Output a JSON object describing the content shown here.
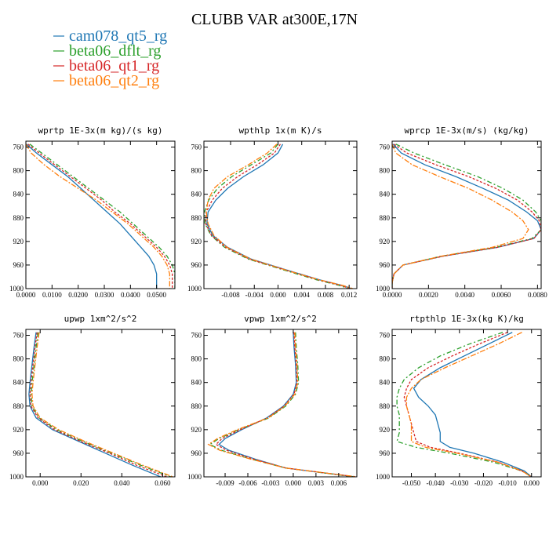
{
  "figure": {
    "title": "CLUBB VAR at300E,17N",
    "series": [
      {
        "name": "cam078_qt5_rg",
        "color": "#1f77b4",
        "dash": ""
      },
      {
        "name": "beta06_dflt_rg",
        "color": "#2ca02c",
        "dash": "6,3,2,3"
      },
      {
        "name": "beta06_qt1_rg",
        "color": "#d62728",
        "dash": "3,2"
      },
      {
        "name": "beta06_qt2_rg",
        "color": "#ff7f0e",
        "dash": "7,2,2,2"
      }
    ]
  },
  "chart_data": [
    {
      "type": "line",
      "title": "wprtp  1E-3x(m kg)/(s kg)",
      "xlim": [
        0,
        0.057
      ],
      "ylim": [
        1000,
        750
      ],
      "xticks": [
        "0.0000",
        "0.0100",
        "0.0200",
        "0.0300",
        "0.0400",
        "0.0500"
      ],
      "xtick_values": [
        0,
        0.01,
        0.02,
        0.03,
        0.04,
        0.05
      ],
      "yticks": [
        760,
        800,
        840,
        880,
        920,
        960,
        1000
      ],
      "p": [
        755,
        770,
        790,
        810,
        830,
        850,
        870,
        890,
        910,
        930,
        945,
        960,
        975,
        990,
        1000
      ],
      "series": [
        {
          "name": "cam078_qt5_rg",
          "values": [
            0.0002,
            0.004,
            0.01,
            0.016,
            0.021,
            0.026,
            0.031,
            0.036,
            0.04,
            0.044,
            0.047,
            0.049,
            0.05,
            0.05,
            0.05
          ]
        },
        {
          "name": "beta06_dflt_rg",
          "values": [
            0.0015,
            0.006,
            0.012,
            0.018,
            0.024,
            0.03,
            0.036,
            0.041,
            0.046,
            0.051,
            0.054,
            0.056,
            0.057,
            0.057,
            0.057
          ]
        },
        {
          "name": "beta06_qt1_rg",
          "values": [
            0.0008,
            0.005,
            0.011,
            0.017,
            0.023,
            0.029,
            0.034,
            0.04,
            0.045,
            0.05,
            0.053,
            0.055,
            0.056,
            0.056,
            0.056
          ]
        },
        {
          "name": "beta06_qt2_rg",
          "values": [
            0.0,
            0.002,
            0.007,
            0.013,
            0.02,
            0.027,
            0.033,
            0.039,
            0.044,
            0.049,
            0.052,
            0.054,
            0.055,
            0.055,
            0.055
          ]
        }
      ]
    },
    {
      "type": "line",
      "title": "wpthlp  1x(m K)/s",
      "xlim": [
        -0.0125,
        0.0133
      ],
      "ylim": [
        1000,
        750
      ],
      "xticks": [
        "-0.008",
        "-0.004",
        "0.000",
        "0.004",
        "0.008",
        "0.012"
      ],
      "xtick_values": [
        -0.008,
        -0.004,
        0.0,
        0.004,
        0.008,
        0.012
      ],
      "yticks": [
        760,
        800,
        840,
        880,
        920,
        960,
        1000
      ],
      "p": [
        755,
        770,
        790,
        810,
        830,
        850,
        870,
        890,
        910,
        930,
        950,
        970,
        985,
        995,
        1000
      ],
      "series": [
        {
          "name": "cam078_qt5_rg",
          "values": [
            0.0008,
            0.0,
            -0.0025,
            -0.0058,
            -0.0085,
            -0.0105,
            -0.0118,
            -0.012,
            -0.011,
            -0.0085,
            -0.0045,
            0.002,
            0.007,
            0.011,
            0.0123
          ]
        },
        {
          "name": "beta06_dflt_rg",
          "values": [
            0.0,
            -0.0012,
            -0.0045,
            -0.0078,
            -0.0102,
            -0.0117,
            -0.0124,
            -0.0123,
            -0.0113,
            -0.009,
            -0.005,
            0.0015,
            0.0065,
            0.0105,
            0.0118
          ]
        },
        {
          "name": "beta06_qt1_rg",
          "values": [
            0.0004,
            -0.0006,
            -0.0035,
            -0.0068,
            -0.0094,
            -0.0111,
            -0.0121,
            -0.0122,
            -0.0112,
            -0.0088,
            -0.0048,
            0.0018,
            0.0068,
            0.0108,
            0.012
          ]
        },
        {
          "name": "beta06_qt2_rg",
          "values": [
            -0.0002,
            -0.0018,
            -0.005,
            -0.0085,
            -0.0108,
            -0.0118,
            -0.0121,
            -0.0118,
            -0.0108,
            -0.0086,
            -0.0046,
            0.0018,
            0.0069,
            0.0111,
            0.0126
          ]
        }
      ]
    },
    {
      "type": "line",
      "title": "wprcp  1E-3x(m/s) (kg/kg)",
      "xlim": [
        0,
        0.0082
      ],
      "ylim": [
        1000,
        750
      ],
      "xticks": [
        "0.0000",
        "0.0020",
        "0.0040",
        "0.0060",
        "0.0080"
      ],
      "xtick_values": [
        0,
        0.002,
        0.004,
        0.006,
        0.008
      ],
      "yticks": [
        760,
        800,
        840,
        880,
        920,
        960,
        1000
      ],
      "p": [
        755,
        770,
        790,
        810,
        830,
        850,
        870,
        885,
        900,
        915,
        930,
        945,
        960,
        975,
        990,
        1000
      ],
      "series": [
        {
          "name": "cam078_qt5_rg",
          "values": [
            5e-05,
            0.0005,
            0.0018,
            0.0035,
            0.005,
            0.0064,
            0.0074,
            0.008,
            0.0082,
            0.0078,
            0.0058,
            0.0028,
            0.0006,
            0.0001,
            0.0,
            0.0
          ]
        },
        {
          "name": "beta06_dflt_rg",
          "values": [
            0.0002,
            0.0012,
            0.0029,
            0.0047,
            0.0061,
            0.0072,
            0.0079,
            0.0082,
            0.0082,
            0.0077,
            0.0057,
            0.0027,
            0.0006,
            0.0001,
            0.0,
            0.0
          ]
        },
        {
          "name": "beta06_qt1_rg",
          "values": [
            0.0001,
            0.0008,
            0.0024,
            0.0042,
            0.0057,
            0.0069,
            0.0077,
            0.0081,
            0.0082,
            0.0078,
            0.0058,
            0.0028,
            0.0006,
            0.0001,
            0.0,
            0.0
          ]
        },
        {
          "name": "beta06_qt2_rg",
          "values": [
            0.0,
            0.0002,
            0.0011,
            0.0026,
            0.0042,
            0.0055,
            0.0066,
            0.0072,
            0.0075,
            0.0072,
            0.0055,
            0.0027,
            0.0006,
            0.0001,
            0.0,
            0.0
          ]
        }
      ]
    },
    {
      "type": "line",
      "title": "upwp  1xm^2/s^2",
      "xlim": [
        -0.007,
        0.066
      ],
      "ylim": [
        1000,
        750
      ],
      "xticks": [
        "0.000",
        "0.020",
        "0.040",
        "0.060"
      ],
      "xtick_values": [
        0,
        0.02,
        0.04,
        0.06
      ],
      "yticks": [
        760,
        800,
        840,
        880,
        920,
        960,
        1000
      ],
      "p": [
        755,
        780,
        810,
        840,
        860,
        880,
        900,
        920,
        940,
        960,
        980,
        1000
      ],
      "series": [
        {
          "name": "cam078_qt5_rg",
          "values": [
            -0.002,
            -0.003,
            -0.004,
            -0.005,
            -0.0055,
            -0.005,
            -0.002,
            0.006,
            0.019,
            0.032,
            0.045,
            0.059
          ]
        },
        {
          "name": "beta06_dflt_rg",
          "values": [
            -0.001,
            -0.002,
            -0.003,
            -0.004,
            -0.0045,
            -0.004,
            -0.0005,
            0.008,
            0.021,
            0.035,
            0.049,
            0.064
          ]
        },
        {
          "name": "beta06_qt1_rg",
          "values": [
            -0.0015,
            -0.0025,
            -0.0035,
            -0.0045,
            -0.005,
            -0.0045,
            -0.001,
            0.007,
            0.02,
            0.034,
            0.047,
            0.062
          ]
        },
        {
          "name": "beta06_qt2_rg",
          "values": [
            -0.0005,
            -0.0015,
            -0.0025,
            -0.0035,
            -0.004,
            -0.0035,
            0.0,
            0.009,
            0.022,
            0.036,
            0.05,
            0.065
          ]
        }
      ]
    },
    {
      "type": "line",
      "title": "vpwp  1xm^2/s^2",
      "xlim": [
        -0.0118,
        0.0084
      ],
      "ylim": [
        1000,
        750
      ],
      "xticks": [
        "-0.009",
        "-0.006",
        "-0.003",
        "0.000",
        "0.003",
        "0.006"
      ],
      "xtick_values": [
        -0.009,
        -0.006,
        -0.003,
        0.0,
        0.003,
        0.006
      ],
      "yticks": [
        760,
        800,
        840,
        880,
        920,
        960,
        1000
      ],
      "p": [
        755,
        780,
        810,
        840,
        860,
        880,
        900,
        920,
        935,
        945,
        955,
        970,
        985,
        1000
      ],
      "series": [
        {
          "name": "cam078_qt5_rg",
          "values": [
            0.0,
            0.0001,
            0.0003,
            0.0004,
            0.0,
            -0.0013,
            -0.0035,
            -0.0068,
            -0.009,
            -0.0098,
            -0.0085,
            -0.005,
            -0.001,
            0.0082
          ]
        },
        {
          "name": "beta06_dflt_rg",
          "values": [
            0.0003,
            0.0004,
            0.0006,
            0.0007,
            0.0003,
            -0.001,
            -0.0032,
            -0.0072,
            -0.0098,
            -0.011,
            -0.0095,
            -0.0055,
            -0.001,
            0.008
          ]
        },
        {
          "name": "beta06_qt1_rg",
          "values": [
            0.0001,
            0.0002,
            0.0004,
            0.0005,
            0.0001,
            -0.0012,
            -0.0034,
            -0.007,
            -0.0094,
            -0.0102,
            -0.0088,
            -0.0052,
            -0.001,
            0.0083
          ]
        },
        {
          "name": "beta06_qt2_rg",
          "values": [
            0.0002,
            0.0003,
            0.0005,
            0.0006,
            0.0002,
            -0.0011,
            -0.0033,
            -0.0074,
            -0.01,
            -0.0112,
            -0.0097,
            -0.0056,
            -0.001,
            0.0084
          ]
        }
      ]
    },
    {
      "type": "line",
      "title": "rtpthlp  1E-3x(kg K)/kg",
      "xlim": [
        -0.058,
        0.004
      ],
      "ylim": [
        1000,
        750
      ],
      "xticks": [
        "-0.050",
        "-0.040",
        "-0.030",
        "-0.020",
        "-0.010",
        "0.000"
      ],
      "xtick_values": [
        -0.05,
        -0.04,
        -0.03,
        -0.02,
        -0.01,
        0.0
      ],
      "yticks": [
        760,
        800,
        840,
        880,
        920,
        960,
        1000
      ],
      "p": [
        755,
        775,
        795,
        815,
        835,
        850,
        865,
        880,
        895,
        910,
        925,
        940,
        950,
        960,
        975,
        990,
        1000
      ],
      "series": [
        {
          "name": "cam078_qt5_rg",
          "values": [
            -0.008,
            -0.018,
            -0.028,
            -0.038,
            -0.046,
            -0.049,
            -0.047,
            -0.043,
            -0.04,
            -0.039,
            -0.038,
            -0.038,
            -0.034,
            -0.024,
            -0.012,
            -0.003,
            0.0
          ]
        },
        {
          "name": "beta06_dflt_rg",
          "values": [
            -0.012,
            -0.026,
            -0.038,
            -0.047,
            -0.053,
            -0.055,
            -0.056,
            -0.056,
            -0.055,
            -0.055,
            -0.055,
            -0.056,
            -0.048,
            -0.034,
            -0.016,
            -0.004,
            0.0
          ]
        },
        {
          "name": "beta06_qt1_rg",
          "values": [
            -0.01,
            -0.022,
            -0.033,
            -0.043,
            -0.05,
            -0.052,
            -0.053,
            -0.052,
            -0.051,
            -0.05,
            -0.049,
            -0.048,
            -0.042,
            -0.03,
            -0.014,
            -0.004,
            0.0
          ]
        },
        {
          "name": "beta06_qt2_rg",
          "values": [
            -0.004,
            -0.014,
            -0.025,
            -0.036,
            -0.046,
            -0.05,
            -0.052,
            -0.052,
            -0.051,
            -0.05,
            -0.05,
            -0.05,
            -0.044,
            -0.031,
            -0.014,
            -0.004,
            0.0
          ]
        }
      ]
    }
  ]
}
